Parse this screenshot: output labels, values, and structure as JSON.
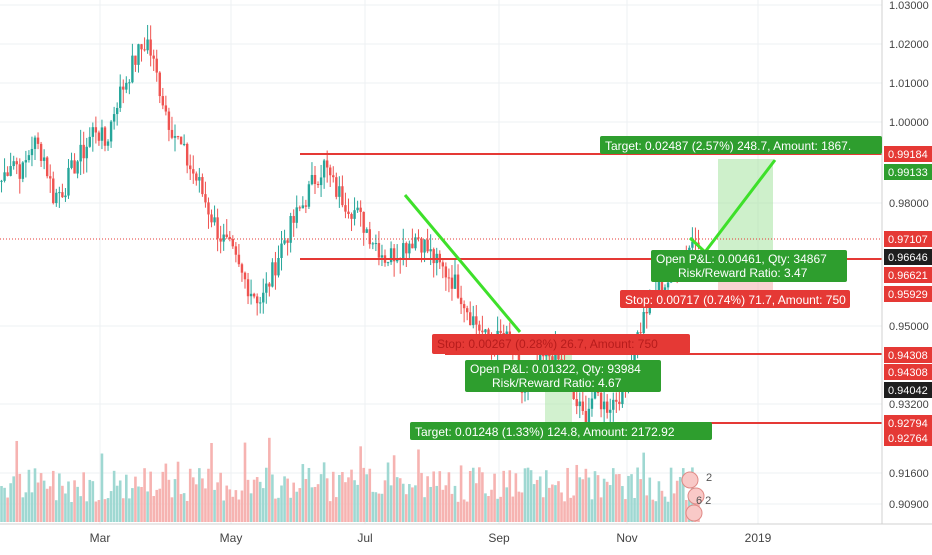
{
  "chart_data": {
    "type": "candlestick",
    "x_labels": [
      "Mar",
      "May",
      "Jul",
      "Sep",
      "Nov",
      "2019"
    ],
    "y_ticks": [
      "1.03000",
      "1.02000",
      "1.01000",
      "1.00000",
      "0.98000",
      "0.95000",
      "0.93200",
      "0.91600",
      "0.90900"
    ],
    "price_tags": [
      {
        "text": "0.99184",
        "color": "#e53935"
      },
      {
        "text": "0.99133",
        "color": "#2e9e2e"
      },
      {
        "text": "0.97107",
        "color": "#e53935"
      },
      {
        "text": "0.96646",
        "color": "#1e1e1e"
      },
      {
        "text": "0.96621",
        "color": "#e53935"
      },
      {
        "text": "0.95929",
        "color": "#e53935"
      },
      {
        "text": "0.94308",
        "color": "#e53935"
      },
      {
        "text": "0.94308",
        "color": "#e53935"
      },
      {
        "text": "0.94042",
        "color": "#1e1e1e"
      },
      {
        "text": "0.92794",
        "color": "#e53935"
      },
      {
        "text": "0.92764",
        "color": "#e53935"
      }
    ],
    "long_position": {
      "target_label": "Target: 0.02487 (2.57%) 248.7, Amount: 1867.",
      "pnl_line1": "Open P&L: 0.00461, Qty: 34867",
      "pnl_line2": "Risk/Reward Ratio: 3.47",
      "stop_label": "Stop: 0.00717 (0.74%) 71.7, Amount: 750"
    },
    "short_position": {
      "stop_label": "Stop: 0.00267 (0.28%) 26.7, Amount: 750",
      "pnl_line1": "Open P&L: 0.01322, Qty: 93984",
      "pnl_line2": "Risk/Reward Ratio: 4.67",
      "target_label": "Target: 0.01248 (1.33%) 124.8, Amount: 2172.92"
    },
    "horizontal_levels": [
      "0.99184",
      "0.96646",
      "0.94308",
      "0.92794"
    ],
    "series": [
      {
        "name": "price_path",
        "values": [
          0.986,
          0.992,
          0.988,
          0.996,
          0.993,
          0.982,
          0.984,
          0.99,
          0.994,
          1.0,
          0.995,
          1.006,
          1.012,
          1.018,
          1.022,
          1.012,
          1.002,
          0.996,
          0.99,
          0.985,
          0.978,
          0.972,
          0.968,
          0.962,
          0.958,
          0.955,
          0.962,
          0.97,
          0.975,
          0.98,
          0.986,
          0.99,
          0.984,
          0.981,
          0.978,
          0.974,
          0.97,
          0.966,
          0.968,
          0.97,
          0.972,
          0.968,
          0.964,
          0.962,
          0.958,
          0.952,
          0.948,
          0.943,
          0.946,
          0.944,
          0.932,
          0.936,
          0.94,
          0.942,
          0.938,
          0.93,
          0.925,
          0.932,
          0.928,
          0.93,
          0.934,
          0.945,
          0.953,
          0.958,
          0.96,
          0.965,
          0.969,
          0.972
        ]
      }
    ],
    "colors": {
      "up": "#26a69a",
      "down": "#ef5350",
      "level": "#e53935",
      "trend": "#3ee02a",
      "target_zone": "#a6e3a0",
      "stop_zone": "#f4a7a6"
    }
  }
}
